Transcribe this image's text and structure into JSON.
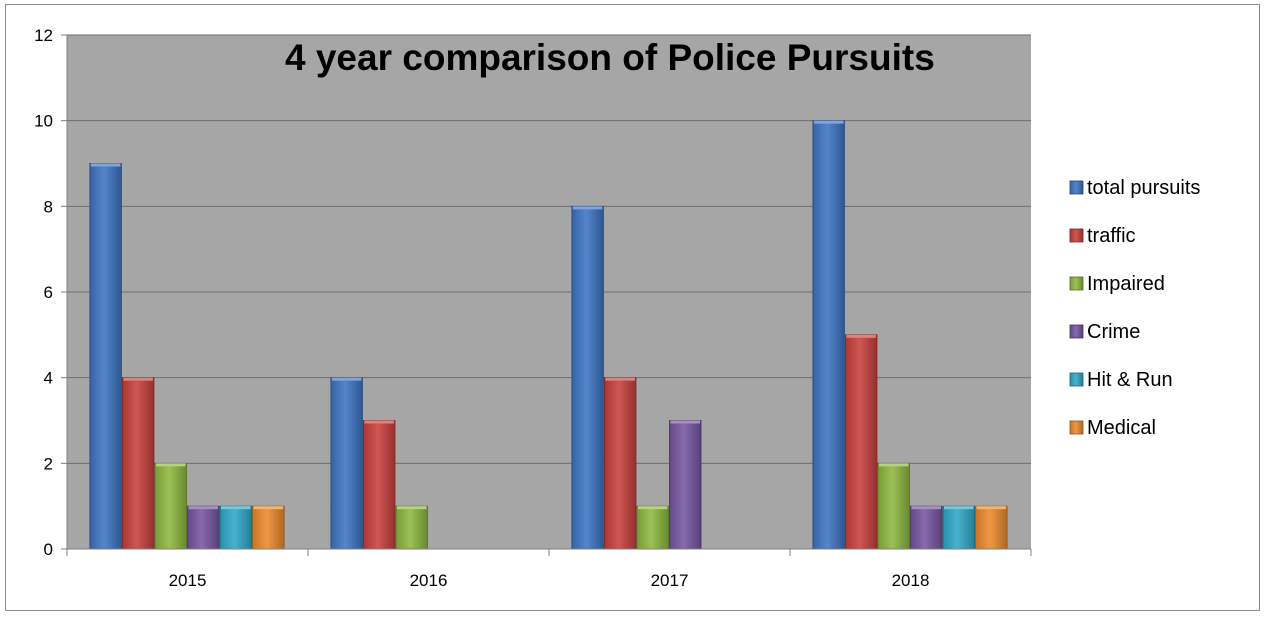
{
  "chart_data": {
    "type": "bar",
    "title": "4 year comparison of Police Pursuits",
    "xlabel": "",
    "ylabel": "",
    "categories": [
      "2015",
      "2016",
      "2017",
      "2018"
    ],
    "ylim": [
      0,
      12
    ],
    "yticks": [
      0,
      2,
      4,
      6,
      8,
      10,
      12
    ],
    "grid": true,
    "legend_position": "right",
    "series": [
      {
        "name": "total pursuits",
        "color": "#3d74c4",
        "values": [
          9,
          4,
          8,
          10
        ]
      },
      {
        "name": "traffic",
        "color": "#c8403d",
        "values": [
          4,
          3,
          4,
          5
        ]
      },
      {
        "name": "Impaired",
        "color": "#8db83f",
        "values": [
          2,
          1,
          1,
          2
        ]
      },
      {
        "name": "Crime",
        "color": "#7556a0",
        "values": [
          1,
          0,
          3,
          1
        ]
      },
      {
        "name": "Hit & Run",
        "color": "#2fa9c8",
        "values": [
          1,
          0,
          0,
          1
        ]
      },
      {
        "name": "Medical",
        "color": "#ec8a2c",
        "values": [
          1,
          0,
          0,
          1
        ]
      }
    ],
    "plot_background": "#a6a6a6"
  }
}
